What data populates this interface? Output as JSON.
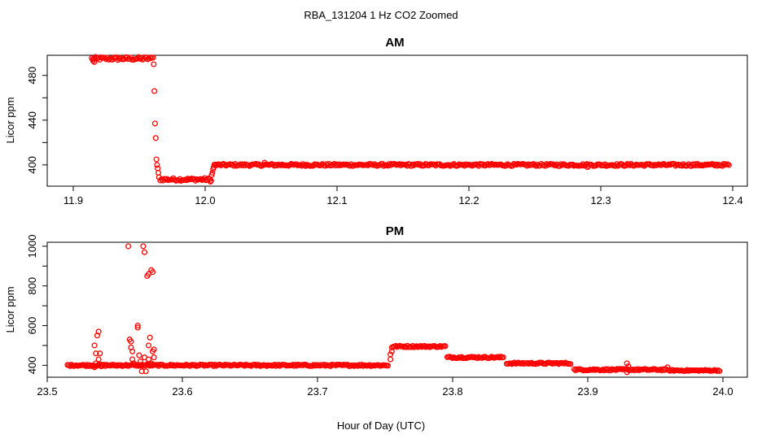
{
  "figure": {
    "title": "RBA_131204  1 Hz CO2 Zoomed",
    "xlabel": "Hour of Day (UTC)"
  },
  "chart_data": [
    {
      "type": "scatter",
      "title": "AM",
      "ylabel": "Licor ppm",
      "xlim": [
        11.9,
        12.4
      ],
      "ylim": [
        381,
        498
      ],
      "xticks": [
        11.9,
        12.0,
        12.1,
        12.2,
        12.3,
        12.4
      ],
      "xtick_labels": [
        "11.9",
        "12.0",
        "12.1",
        "12.2",
        "12.3",
        "12.4"
      ],
      "yticks": [
        400,
        440,
        480
      ],
      "ytick_labels": [
        "400",
        "440",
        "480"
      ],
      "minor_yticks": [
        420,
        460
      ],
      "color": "#ff0000",
      "marker": "open-circle",
      "segments": [
        {
          "x_start": 11.914,
          "x_end": 11.96,
          "y": 495,
          "jitter": 1.5
        },
        {
          "x_start": 11.966,
          "x_end": 12.005,
          "y": 387,
          "jitter": 1.2
        },
        {
          "x_start": 12.007,
          "x_end": 12.398,
          "y": 400,
          "jitter": 1.0
        }
      ],
      "points": [
        {
          "x": 11.915,
          "y": 493
        },
        {
          "x": 11.916,
          "y": 492
        },
        {
          "x": 11.9605,
          "y": 496
        },
        {
          "x": 11.961,
          "y": 490
        },
        {
          "x": 11.9615,
          "y": 466
        },
        {
          "x": 11.962,
          "y": 437
        },
        {
          "x": 11.9625,
          "y": 424
        },
        {
          "x": 11.963,
          "y": 405
        },
        {
          "x": 11.9635,
          "y": 400
        },
        {
          "x": 11.964,
          "y": 397
        },
        {
          "x": 11.9645,
          "y": 393
        },
        {
          "x": 11.965,
          "y": 389
        },
        {
          "x": 12.004,
          "y": 385
        },
        {
          "x": 12.005,
          "y": 391
        },
        {
          "x": 12.0055,
          "y": 393
        },
        {
          "x": 12.006,
          "y": 396
        },
        {
          "x": 12.0065,
          "y": 398
        },
        {
          "x": 12.007,
          "y": 400
        },
        {
          "x": 12.045,
          "y": 402
        },
        {
          "x": 12.29,
          "y": 398
        }
      ]
    },
    {
      "type": "scatter",
      "title": "PM",
      "ylabel": "Licor ppm",
      "xlim": [
        23.5,
        24.0
      ],
      "ylim": [
        340,
        1020
      ],
      "xticks": [
        23.5,
        23.6,
        23.7,
        23.8,
        23.9,
        24.0
      ],
      "xtick_labels": [
        "23.5",
        "23.6",
        "23.7",
        "23.8",
        "23.9",
        "24.0"
      ],
      "yticks": [
        400,
        600,
        800,
        1000
      ],
      "ytick_labels": [
        "400",
        "600",
        "800",
        "1000"
      ],
      "minor_yticks": [
        500,
        700,
        900
      ],
      "color": "#ff0000",
      "marker": "open-circle",
      "segments": [
        {
          "x_start": 23.515,
          "x_end": 23.753,
          "y": 400,
          "jitter": 4
        },
        {
          "x_start": 23.756,
          "x_end": 23.795,
          "y": 495,
          "jitter": 4
        },
        {
          "x_start": 23.796,
          "x_end": 23.838,
          "y": 440,
          "jitter": 4
        },
        {
          "x_start": 23.84,
          "x_end": 23.888,
          "y": 410,
          "jitter": 4
        },
        {
          "x_start": 23.89,
          "x_end": 23.958,
          "y": 378,
          "jitter": 4
        },
        {
          "x_start": 23.959,
          "x_end": 23.998,
          "y": 374,
          "jitter": 3
        }
      ],
      "points": [
        {
          "x": 23.535,
          "y": 390
        },
        {
          "x": 23.535,
          "y": 500
        },
        {
          "x": 23.536,
          "y": 460
        },
        {
          "x": 23.537,
          "y": 550
        },
        {
          "x": 23.538,
          "y": 570
        },
        {
          "x": 23.538,
          "y": 430
        },
        {
          "x": 23.539,
          "y": 460
        },
        {
          "x": 23.536,
          "y": 410
        },
        {
          "x": 23.54,
          "y": 395
        },
        {
          "x": 23.56,
          "y": 1000
        },
        {
          "x": 23.561,
          "y": 530
        },
        {
          "x": 23.562,
          "y": 520
        },
        {
          "x": 23.562,
          "y": 490
        },
        {
          "x": 23.563,
          "y": 470
        },
        {
          "x": 23.563,
          "y": 430
        },
        {
          "x": 23.564,
          "y": 410
        },
        {
          "x": 23.567,
          "y": 600
        },
        {
          "x": 23.567,
          "y": 590
        },
        {
          "x": 23.568,
          "y": 450
        },
        {
          "x": 23.569,
          "y": 420
        },
        {
          "x": 23.569,
          "y": 400
        },
        {
          "x": 23.57,
          "y": 370
        },
        {
          "x": 23.571,
          "y": 1000
        },
        {
          "x": 23.572,
          "y": 970
        },
        {
          "x": 23.572,
          "y": 440
        },
        {
          "x": 23.573,
          "y": 370
        },
        {
          "x": 23.574,
          "y": 850
        },
        {
          "x": 23.575,
          "y": 860
        },
        {
          "x": 23.575,
          "y": 500
        },
        {
          "x": 23.575,
          "y": 430
        },
        {
          "x": 23.576,
          "y": 540
        },
        {
          "x": 23.577,
          "y": 880
        },
        {
          "x": 23.578,
          "y": 870
        },
        {
          "x": 23.578,
          "y": 470
        },
        {
          "x": 23.579,
          "y": 480
        },
        {
          "x": 23.579,
          "y": 440
        },
        {
          "x": 23.577,
          "y": 410
        },
        {
          "x": 23.574,
          "y": 405
        },
        {
          "x": 23.754,
          "y": 430
        },
        {
          "x": 23.754,
          "y": 455
        },
        {
          "x": 23.755,
          "y": 470
        },
        {
          "x": 23.755,
          "y": 490
        },
        {
          "x": 23.929,
          "y": 410
        },
        {
          "x": 23.929,
          "y": 365
        },
        {
          "x": 23.93,
          "y": 395
        },
        {
          "x": 23.959,
          "y": 390
        }
      ]
    }
  ]
}
